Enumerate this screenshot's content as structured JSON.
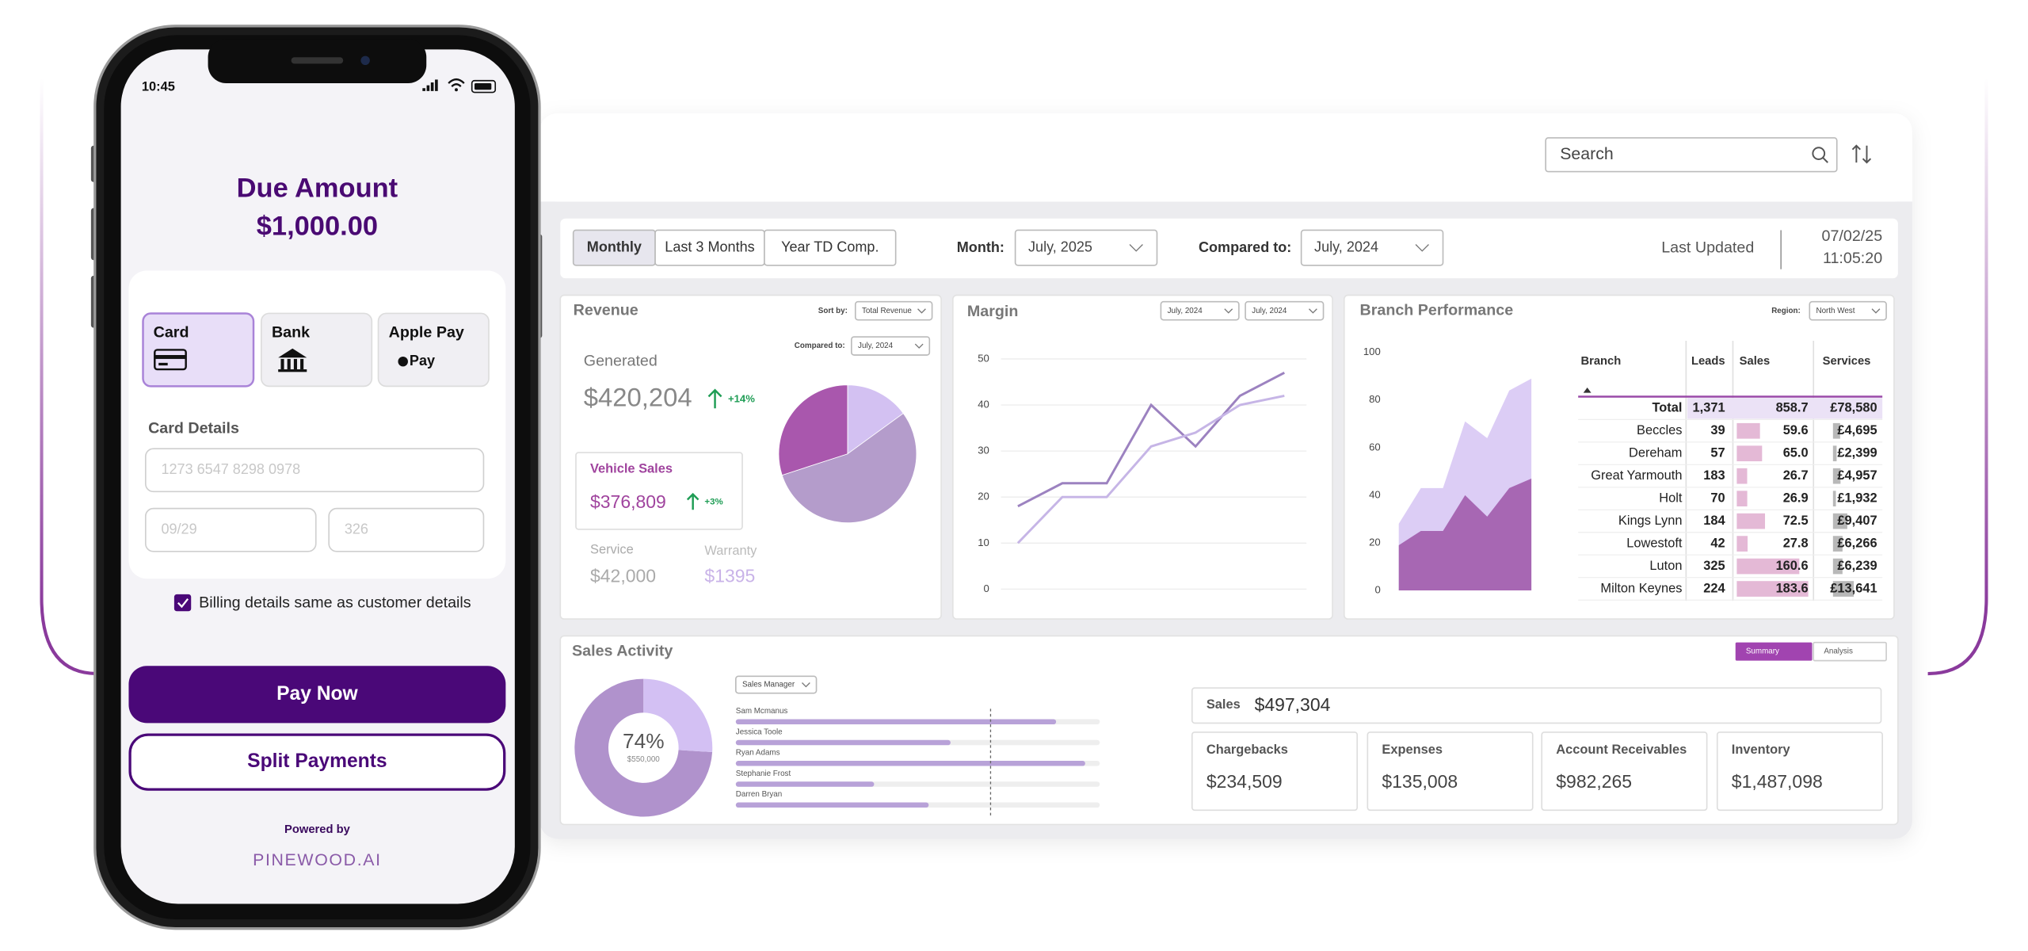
{
  "phone": {
    "time": "10:45",
    "due_label": "Due Amount",
    "due_amount": "$1,000.00",
    "methods": [
      "Card",
      "Bank",
      "Apple Pay"
    ],
    "apple_pay_mark": "Pay",
    "card_details": "Card Details",
    "card_number": "1273 6547 8298 0978",
    "expiry": "09/29",
    "cvv": "326",
    "billing": "Billing details same as customer details",
    "pay_now": "Pay Now",
    "split": "Split Payments",
    "powered_by": "Powered by",
    "brand": "PINEWOOD.AI"
  },
  "dashboard": {
    "search": "Search",
    "tabs": [
      "Monthly",
      "Last 3 Months",
      "Year TD Comp."
    ],
    "month_label": "Month:",
    "month": "July, 2025",
    "compared_label": "Compared to:",
    "compared": "July, 2024",
    "last_updated": "Last Updated",
    "updated_date": "07/02/25",
    "updated_time": "11:05:20",
    "revenue": {
      "title": "Revenue",
      "sort_label": "Sort by:",
      "sort": "Total Revenue",
      "compared_label": "Compared to:",
      "compared": "July, 2024",
      "generated_label": "Generated",
      "generated": "$420,204",
      "generated_change": "+14%",
      "vehicle_label": "Vehicle Sales",
      "vehicle": "$376,809",
      "vehicle_change": "+3%",
      "service_label": "Service",
      "service": "$42,000",
      "warranty_label": "Warranty",
      "warranty": "$1395",
      "pie": {
        "type": "pie",
        "values": [
          15,
          55,
          30
        ],
        "colors": [
          "#d3c1f2",
          "#b49ccb",
          "#a957ad"
        ]
      }
    },
    "margin": {
      "title": "Margin",
      "filters": [
        "July, 2024",
        "July, 2024"
      ],
      "chart": {
        "type": "line",
        "categories": [
          null,
          null,
          null,
          null,
          null,
          null,
          null
        ],
        "ylim": [
          0,
          50
        ],
        "yticks": [
          0,
          10,
          20,
          30,
          40,
          50
        ],
        "grid": true,
        "series": [
          {
            "color": "#9c82c0",
            "values": [
              18,
              23,
              23,
              40,
              31,
              42,
              47
            ]
          },
          {
            "color": "#c6b5e6",
            "values": [
              10,
              20,
              20,
              31,
              34,
              40,
              42
            ]
          }
        ]
      }
    },
    "branch": {
      "title": "Branch Performance",
      "region_label": "Region:",
      "region": "North West",
      "chart": {
        "type": "area",
        "categories": [
          null,
          null,
          null,
          null,
          null,
          null,
          null
        ],
        "ylim": [
          0,
          100
        ],
        "yticks": [
          0,
          20,
          40,
          60,
          80,
          100
        ],
        "series": [
          {
            "color": "#dccdf5",
            "values": [
              28,
              43,
              43,
              71,
              64,
              84,
              89
            ]
          },
          {
            "color": "#a767b3",
            "values": [
              19,
              25,
              25,
              40,
              31,
              43,
              47
            ]
          }
        ]
      },
      "table": {
        "columns": [
          "Branch",
          "Leads",
          "Sales",
          "Services"
        ],
        "rows": [
          [
            "Total",
            "1,371",
            "858.7",
            "£78,580"
          ],
          [
            "Beccles",
            "39",
            "59.6",
            "£4,695"
          ],
          [
            "Dereham",
            "57",
            "65.0",
            "£2,399"
          ],
          [
            "Great Yarmouth",
            "183",
            "26.7",
            "£4,957"
          ],
          [
            "Holt",
            "70",
            "26.9",
            "£1,932"
          ],
          [
            "Kings Lynn",
            "184",
            "72.5",
            "£9,407"
          ],
          [
            "Lowestoft",
            "42",
            "27.8",
            "£6,266"
          ],
          [
            "Luton",
            "325",
            "160.6",
            "£6,239"
          ],
          [
            "Milton Keynes",
            "224",
            "183.6",
            "£13,641"
          ]
        ]
      }
    },
    "sales_activity": {
      "title": "Sales Activity",
      "views": [
        "Summary",
        "Analysis"
      ],
      "donut": {
        "value": 74,
        "value_label": "74%",
        "subtitle": "$550,000",
        "colors": [
          "#b092cc",
          "#d3c0f3"
        ]
      },
      "manager_filter": "Sales Manager",
      "managers": {
        "names": [
          "Sam Mcmanus",
          "Jessica Toole",
          "Ryan Adams",
          "Stephanie Frost",
          "Darren Bryan"
        ],
        "values": [
          88,
          59,
          96,
          38,
          53
        ],
        "target": 70,
        "xlim": [
          0,
          100
        ],
        "color": "#b8a2d8"
      },
      "kpis": [
        {
          "label": "Sales",
          "value": "$497,304"
        },
        {
          "label": "Chargebacks",
          "value": "$234,509"
        },
        {
          "label": "Expenses",
          "value": "$135,008"
        },
        {
          "label": "Account Receivables",
          "value": "$982,265"
        },
        {
          "label": "Inventory",
          "value": "$1,487,098"
        }
      ]
    }
  }
}
